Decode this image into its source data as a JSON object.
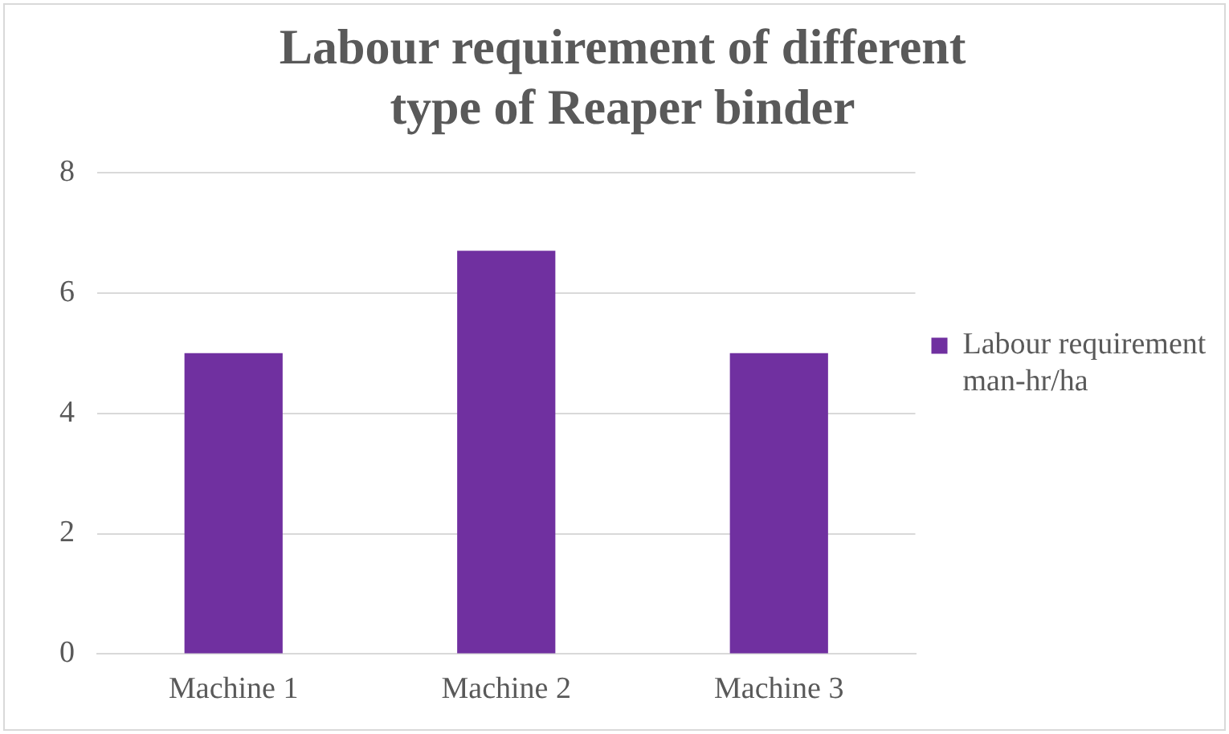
{
  "chart_data": {
    "type": "bar",
    "title": "Labour requirement of different type of Reaper binder",
    "categories": [
      "Machine 1",
      "Machine 2",
      "Machine 3"
    ],
    "series": [
      {
        "name": "Labour requirement man-hr/ha",
        "color": "#7030a0",
        "values": [
          5,
          6.7,
          5
        ]
      }
    ],
    "ylim": [
      0,
      8
    ],
    "yticks": [
      0,
      2,
      4,
      6,
      8
    ],
    "grid": "y",
    "legend": "right"
  }
}
